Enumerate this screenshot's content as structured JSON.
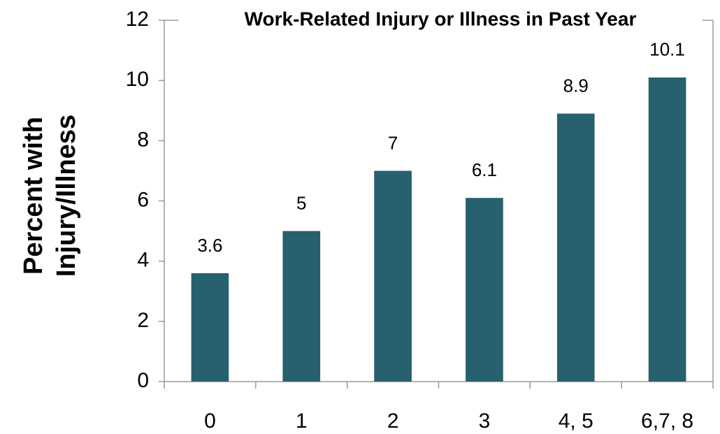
{
  "chart_data": {
    "type": "bar",
    "title": "Work-Related Injury or Illness in Past Year",
    "y_label": [
      "Percent with",
      "Injury/Illness"
    ],
    "categories": [
      "0",
      "1",
      "2",
      "3",
      "4, 5",
      "6,7, 8"
    ],
    "values": [
      3.6,
      5,
      7,
      6.1,
      8.9,
      10.1
    ],
    "color": "#27606f",
    "ylim": [
      0,
      12
    ],
    "yticks": [
      0,
      2,
      4,
      6,
      8,
      10,
      12
    ],
    "grid": false
  }
}
